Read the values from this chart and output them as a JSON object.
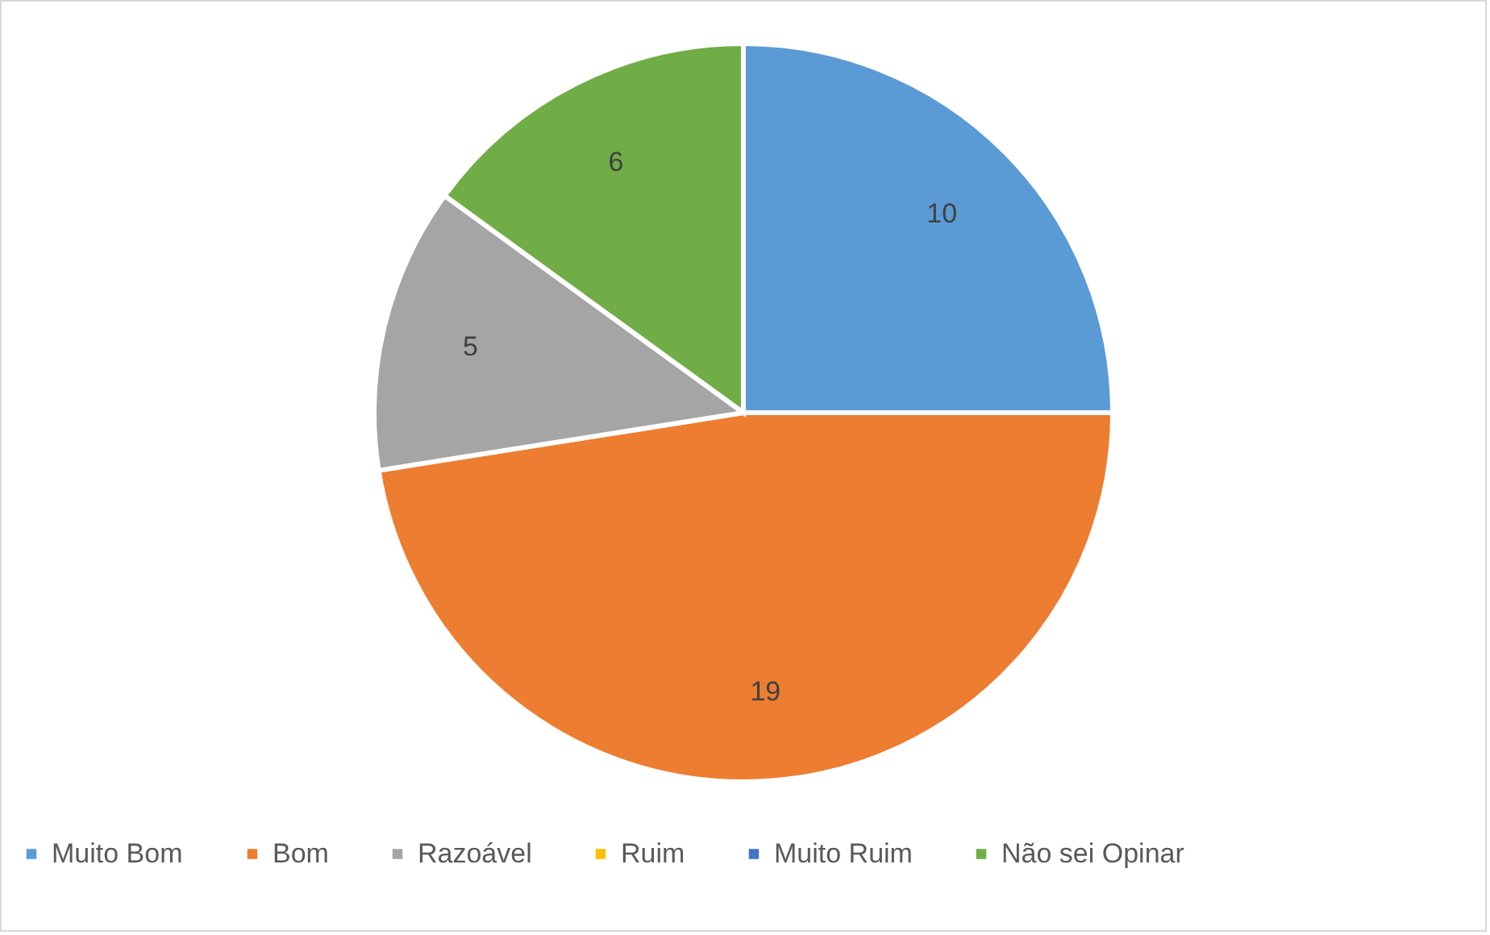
{
  "chart_data": {
    "type": "pie",
    "categories": [
      "Muito Bom",
      "Bom",
      "Razoável",
      "Ruim",
      "Muito Ruim",
      "Não sei Opinar"
    ],
    "values": [
      10,
      19,
      5,
      0,
      0,
      6
    ],
    "colors": [
      "#5b9bd5",
      "#ed7d31",
      "#a5a5a5",
      "#ffc000",
      "#4472c4",
      "#70ad47"
    ],
    "value_labels": [
      "10",
      "19",
      "5",
      null,
      null,
      "6"
    ],
    "legend": "bottom"
  }
}
